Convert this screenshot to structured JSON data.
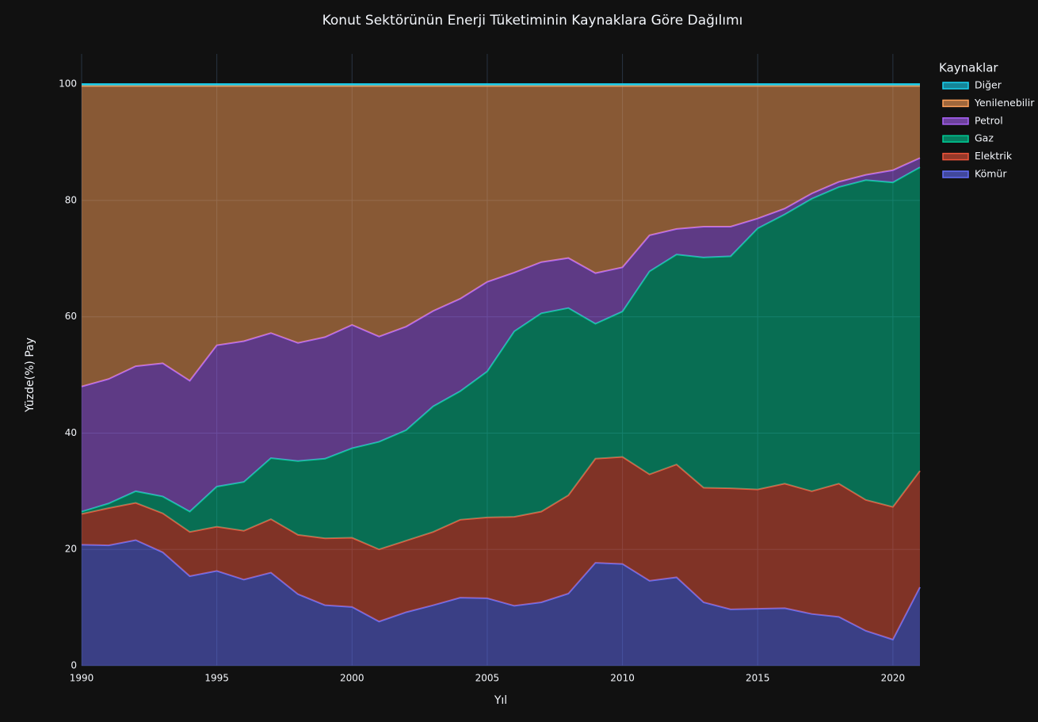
{
  "chart_data": {
    "type": "area",
    "title": "Konut Sektörünün Enerji Tüketiminin Kaynaklara Göre Dağılımı",
    "xlabel": "Yıl",
    "ylabel": "Yüzde(%) Pay",
    "legend_title": "Kaynaklar",
    "x": [
      1990,
      1991,
      1992,
      1993,
      1994,
      1995,
      1996,
      1997,
      1998,
      1999,
      2000,
      2001,
      2002,
      2003,
      2004,
      2005,
      2006,
      2007,
      2008,
      2009,
      2010,
      2011,
      2012,
      2013,
      2014,
      2015,
      2016,
      2017,
      2018,
      2019,
      2020,
      2021
    ],
    "series": [
      {
        "name": "Kömür",
        "color": "#636efa",
        "values": [
          20.8,
          20.7,
          21.6,
          19.5,
          15.4,
          16.3,
          14.8,
          16.0,
          12.3,
          10.4,
          10.1,
          7.6,
          9.2,
          10.4,
          11.7,
          11.6,
          10.3,
          10.9,
          12.4,
          17.7,
          17.5,
          14.6,
          15.2,
          10.9,
          9.7,
          9.8,
          9.9,
          8.9,
          8.4,
          6.0,
          4.5,
          13.5
        ]
      },
      {
        "name": "Elektrik",
        "color": "#ef553b",
        "values": [
          5.3,
          6.4,
          6.4,
          6.7,
          7.6,
          7.6,
          8.4,
          9.2,
          10.2,
          11.5,
          11.9,
          12.4,
          12.3,
          12.6,
          13.4,
          13.9,
          15.3,
          15.6,
          16.9,
          17.9,
          18.4,
          18.3,
          19.4,
          19.7,
          20.8,
          20.5,
          21.4,
          21.1,
          22.9,
          22.5,
          22.8,
          20.0
        ]
      },
      {
        "name": "Gaz",
        "color": "#00cc96",
        "values": [
          0.4,
          0.8,
          2.0,
          2.9,
          3.5,
          6.9,
          8.4,
          10.5,
          12.7,
          13.7,
          15.4,
          18.5,
          19.0,
          21.6,
          22.1,
          25.1,
          31.9,
          34.1,
          32.2,
          23.2,
          25.0,
          34.9,
          36.1,
          39.6,
          39.9,
          44.9,
          46.3,
          50.3,
          51.0,
          55.0,
          55.8,
          52.2
        ]
      },
      {
        "name": "Petrol",
        "color": "#ab63fa",
        "values": [
          21.5,
          21.4,
          21.5,
          22.9,
          22.5,
          24.3,
          24.2,
          21.5,
          20.3,
          20.9,
          21.2,
          18.1,
          17.8,
          16.4,
          15.9,
          15.4,
          10.1,
          8.8,
          8.6,
          8.7,
          7.6,
          6.2,
          4.4,
          5.3,
          5.1,
          1.7,
          1.0,
          0.9,
          0.9,
          0.9,
          2.1,
          1.6
        ]
      },
      {
        "name": "Yenilenebilir",
        "color": "#ffa15a",
        "values": [
          51.7,
          50.4,
          48.2,
          47.7,
          50.7,
          44.6,
          43.9,
          42.5,
          44.2,
          43.2,
          41.1,
          43.1,
          41.4,
          38.7,
          36.6,
          33.7,
          32.1,
          30.3,
          29.6,
          32.2,
          31.2,
          25.7,
          24.6,
          24.2,
          24.2,
          22.8,
          21.1,
          18.5,
          16.5,
          15.3,
          14.5,
          12.4
        ]
      },
      {
        "name": "Diğer",
        "color": "#19d3f3",
        "values": [
          0.3,
          0.3,
          0.3,
          0.3,
          0.3,
          0.3,
          0.3,
          0.3,
          0.3,
          0.3,
          0.3,
          0.3,
          0.3,
          0.3,
          0.3,
          0.3,
          0.3,
          0.3,
          0.3,
          0.3,
          0.3,
          0.3,
          0.3,
          0.3,
          0.3,
          0.3,
          0.3,
          0.3,
          0.3,
          0.3,
          0.3,
          0.3
        ]
      }
    ],
    "xlim": [
      1990,
      2021
    ],
    "xticks": [
      1990,
      1995,
      2000,
      2005,
      2010,
      2015,
      2020
    ],
    "ylim": [
      0,
      105.2
    ],
    "yticks": [
      0,
      20,
      40,
      60,
      80,
      100
    ],
    "grid": true,
    "stacked": true,
    "legend": "right"
  }
}
